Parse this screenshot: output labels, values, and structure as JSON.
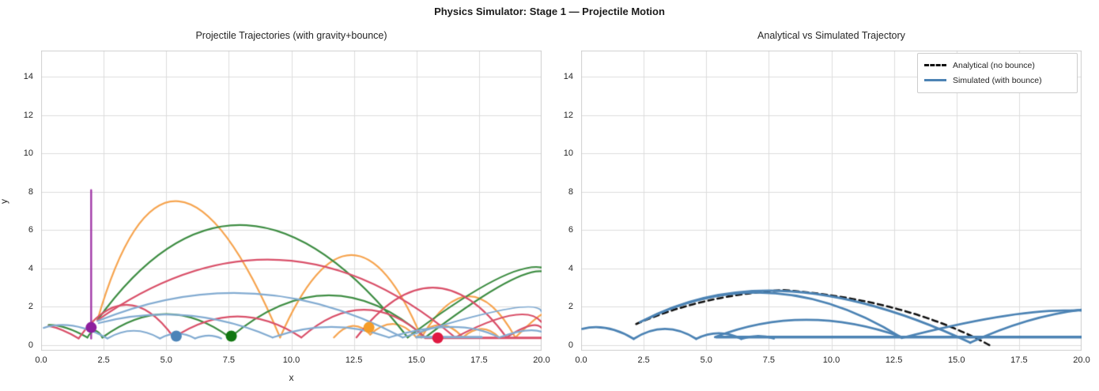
{
  "figure": {
    "title": "Physics Simulator: Stage 1 — Projectile Motion",
    "background": "#ffffff",
    "grid_color": "#dcdcdc",
    "border_color": "#cfcfcf",
    "text_color": "#262626"
  },
  "chart_data": [
    {
      "type": "line",
      "title": "Projectile Trajectories (with gravity+bounce)",
      "xlabel": "x",
      "ylabel": "y",
      "xlim": [
        0,
        20
      ],
      "ylim": [
        -0.29,
        15.36
      ],
      "grid": true,
      "xticks": [
        "0.0",
        "2.5",
        "5.0",
        "7.5",
        "10.0",
        "12.5",
        "15.0",
        "17.5",
        "20.0"
      ],
      "xtick_vals": [
        0,
        2.5,
        5,
        7.5,
        10,
        12.5,
        15,
        17.5,
        20
      ],
      "yticks": [
        "0",
        "2",
        "4",
        "6",
        "8",
        "10",
        "12",
        "14"
      ],
      "ytick_vals": [
        0,
        2,
        4,
        6,
        8,
        10,
        12,
        14
      ],
      "ground_level": 0.4,
      "series": [
        {
          "name": "purple-vertical-throw",
          "color": "#A23BA8",
          "width": 2.4,
          "pts": [
            [
              2.0,
              0.35
            ],
            [
              2.0,
              8.08
            ]
          ]
        },
        {
          "name": "orange-high-arc",
          "color": "#F6A44F",
          "width": 2.2,
          "arcs": [
            [
              2.25,
              1.3,
              5.5,
              7.5,
              9.55,
              0.4
            ],
            [
              9.55,
              0.4,
              12.4,
              4.7,
              15.2,
              0.4
            ],
            [
              15.2,
              0.4,
              17.1,
              2.55,
              18.95,
              0.4
            ],
            [
              18.95,
              0.4,
              19.6,
              1.2,
              20,
              1.6
            ]
          ]
        },
        {
          "name": "orange-low-hops",
          "color": "#F6A44F",
          "width": 2.2,
          "arcs": [
            [
              11.7,
              0.4,
              12.45,
              1.0,
              13.15,
              0.55
            ],
            [
              13.15,
              0.55,
              14.1,
              1.1,
              15.0,
              0.4
            ],
            [
              15.0,
              0.4,
              15.95,
              1.05,
              16.85,
              0.4
            ],
            [
              16.85,
              0.4,
              17.6,
              0.85,
              18.3,
              0.4
            ]
          ]
        },
        {
          "name": "green-high-arc",
          "color": "#3E8D43",
          "width": 2.2,
          "arcs": [
            [
              2.25,
              1.3,
              8.2,
              6.25,
              14.65,
              0.4
            ],
            [
              14.65,
              0.4,
              18.0,
              3.3,
              20,
              4.05
            ]
          ]
        },
        {
          "name": "green-low-arc",
          "color": "#3E8D43",
          "width": 2.2,
          "arcs": [
            [
              0.3,
              1.05,
              1.0,
              0.9,
              1.85,
              0.4
            ],
            [
              1.85,
              0.4,
              2.15,
              0.75,
              2.45,
              0.4
            ],
            [
              2.45,
              0.4,
              5.0,
              1.62,
              7.55,
              0.4
            ],
            [
              7.55,
              0.4,
              11.5,
              2.6,
              15.35,
              0.4
            ],
            [
              15.35,
              0.4,
              18.3,
              3.05,
              20,
              3.85
            ]
          ]
        },
        {
          "name": "red-high-arc",
          "color": "#D95069",
          "width": 2.2,
          "arcs": [
            [
              2.25,
              1.3,
              9.5,
              4.45,
              16.55,
              0.4
            ],
            [
              16.55,
              0.4,
              18.8,
              1.55,
              20,
              1.2
            ]
          ]
        },
        {
          "name": "red-low-arc",
          "color": "#D95069",
          "width": 2.2,
          "arcs": [
            [
              0.3,
              1.0,
              0.85,
              0.78,
              1.5,
              0.35
            ],
            [
              1.5,
              0.35,
              3.4,
              2.1,
              5.3,
              0.4
            ],
            [
              5.3,
              0.4,
              7.85,
              1.5,
              10.4,
              0.4
            ],
            [
              10.4,
              0.4,
              12.9,
              1.85,
              15.35,
              0.4
            ]
          ]
        },
        {
          "name": "red-mid-arc",
          "color": "#D95069",
          "width": 2.2,
          "arcs": [
            [
              12.6,
              0.4,
              15.65,
              3.0,
              18.6,
              0.4
            ],
            [
              18.6,
              0.4,
              19.5,
              1.0,
              20,
              0.9
            ]
          ]
        },
        {
          "name": "red-rolling",
          "color": "#D95069",
          "width": 3.2,
          "pts": [
            [
              15.35,
              0.38
            ],
            [
              20,
              0.38
            ]
          ]
        },
        {
          "name": "blue-high-arc",
          "color": "#82ABD1",
          "width": 2.2,
          "arcs": [
            [
              2.25,
              1.25,
              8.4,
              2.7,
              14.45,
              0.4
            ],
            [
              14.45,
              0.4,
              18.5,
              1.85,
              20,
              1.75
            ]
          ]
        },
        {
          "name": "blue-low-hops",
          "color": "#82ABD1",
          "width": 2.2,
          "arcs": [
            [
              0.1,
              0.9,
              1.3,
              1.0,
              2.65,
              0.35
            ],
            [
              2.65,
              0.35,
              3.7,
              0.75,
              4.75,
              0.35
            ],
            [
              4.75,
              0.35,
              5.45,
              0.6,
              6.15,
              0.35
            ],
            [
              6.15,
              0.35,
              6.7,
              0.5,
              7.2,
              0.35
            ]
          ]
        },
        {
          "name": "blue-mid-arc",
          "color": "#82ABD1",
          "width": 2.2,
          "arcs": [
            [
              2.3,
              1.15,
              5.8,
              1.55,
              9.25,
              0.4
            ],
            [
              9.25,
              0.4,
              11.6,
              0.95,
              13.9,
              0.4
            ],
            [
              13.9,
              0.4,
              16.4,
              0.95,
              18.3,
              0.4
            ],
            [
              18.3,
              0.4,
              19.3,
              0.75,
              20,
              0.7
            ]
          ]
        },
        {
          "name": "blue-rolling",
          "color": "#82ABD1",
          "width": 3.2,
          "pts": [
            [
              15.0,
              0.42
            ],
            [
              17.6,
              0.42
            ]
          ]
        }
      ],
      "markers": [
        {
          "name": "purple-ball",
          "x": 2.0,
          "y": 0.92,
          "r": 7,
          "color": "#8E1F9E"
        },
        {
          "name": "blue-ball",
          "x": 5.4,
          "y": 0.47,
          "r": 7,
          "color": "#4C84B8"
        },
        {
          "name": "green-ball",
          "x": 7.6,
          "y": 0.47,
          "r": 7,
          "color": "#117711"
        },
        {
          "name": "orange-ball",
          "x": 13.1,
          "y": 0.92,
          "r": 7,
          "color": "#F59D28"
        },
        {
          "name": "red-ball",
          "x": 15.85,
          "y": 0.38,
          "r": 7,
          "color": "#E01941"
        }
      ]
    },
    {
      "type": "line",
      "title": "Analytical vs Simulated Trajectory",
      "xlabel": "",
      "ylabel": "",
      "xlim": [
        0,
        20
      ],
      "ylim": [
        -0.29,
        15.36
      ],
      "grid": true,
      "xticks": [
        "0.0",
        "2.5",
        "5.0",
        "7.5",
        "10.0",
        "12.5",
        "15.0",
        "17.5",
        "20.0"
      ],
      "xtick_vals": [
        0,
        2.5,
        5,
        7.5,
        10,
        12.5,
        15,
        17.5,
        20
      ],
      "yticks": [
        "0",
        "2",
        "4",
        "6",
        "8",
        "10",
        "12",
        "14"
      ],
      "ytick_vals": [
        0,
        2,
        4,
        6,
        8,
        10,
        12,
        14
      ],
      "legend": [
        {
          "label": "Analytical (no bounce)",
          "style": "dashed",
          "color": "#111111"
        },
        {
          "label": "Simulated (with bounce)",
          "style": "solid",
          "color": "#4C83B4"
        }
      ],
      "legend_position": "upper right",
      "series": [
        {
          "name": "analytical-no-bounce",
          "color": "#111111",
          "width": 2.6,
          "dash": [
            7,
            5
          ],
          "arcs": [
            [
              2.2,
              1.1,
              5.0,
              2.3,
              8.1,
              2.87
            ],
            [
              8.1,
              2.87,
              12.6,
              1.9,
              16.35,
              -0.02
            ]
          ]
        },
        {
          "name": "simulated-main-arc",
          "color": "#4C83B4",
          "width": 2.8,
          "arcs": [
            [
              2.35,
              1.2,
              7.6,
              2.72,
              12.82,
              0.38
            ],
            [
              12.82,
              0.38,
              16.8,
              1.5,
              19.6,
              1.8
            ],
            [
              19.6,
              1.8,
              19.85,
              1.82,
              20,
              1.8
            ]
          ]
        },
        {
          "name": "simulated-second-arc",
          "color": "#4C83B4",
          "width": 2.8,
          "arcs": [
            [
              2.5,
              1.28,
              8.4,
              2.8,
              15.55,
              0.13
            ],
            [
              15.55,
              0.13,
              17.8,
              1.25,
              20,
              1.85
            ]
          ]
        },
        {
          "name": "simulated-low-hops",
          "color": "#4C83B4",
          "width": 2.8,
          "arcs": [
            [
              0.05,
              0.85,
              1.05,
              0.88,
              2.1,
              0.33
            ],
            [
              2.1,
              0.33,
              3.35,
              0.85,
              4.6,
              0.33
            ],
            [
              4.6,
              0.33,
              5.5,
              0.62,
              6.4,
              0.33
            ],
            [
              6.4,
              0.33,
              7.05,
              0.48,
              7.7,
              0.35
            ]
          ]
        },
        {
          "name": "simulated-mid-arc",
          "color": "#4C83B4",
          "width": 2.8,
          "arcs": [
            [
              5.35,
              0.42,
              9.0,
              1.32,
              12.82,
              0.42
            ]
          ]
        },
        {
          "name": "simulated-rolling",
          "color": "#4C83B4",
          "width": 3.4,
          "pts": [
            [
              5.4,
              0.42
            ],
            [
              20,
              0.42
            ]
          ]
        }
      ],
      "markers": []
    }
  ]
}
